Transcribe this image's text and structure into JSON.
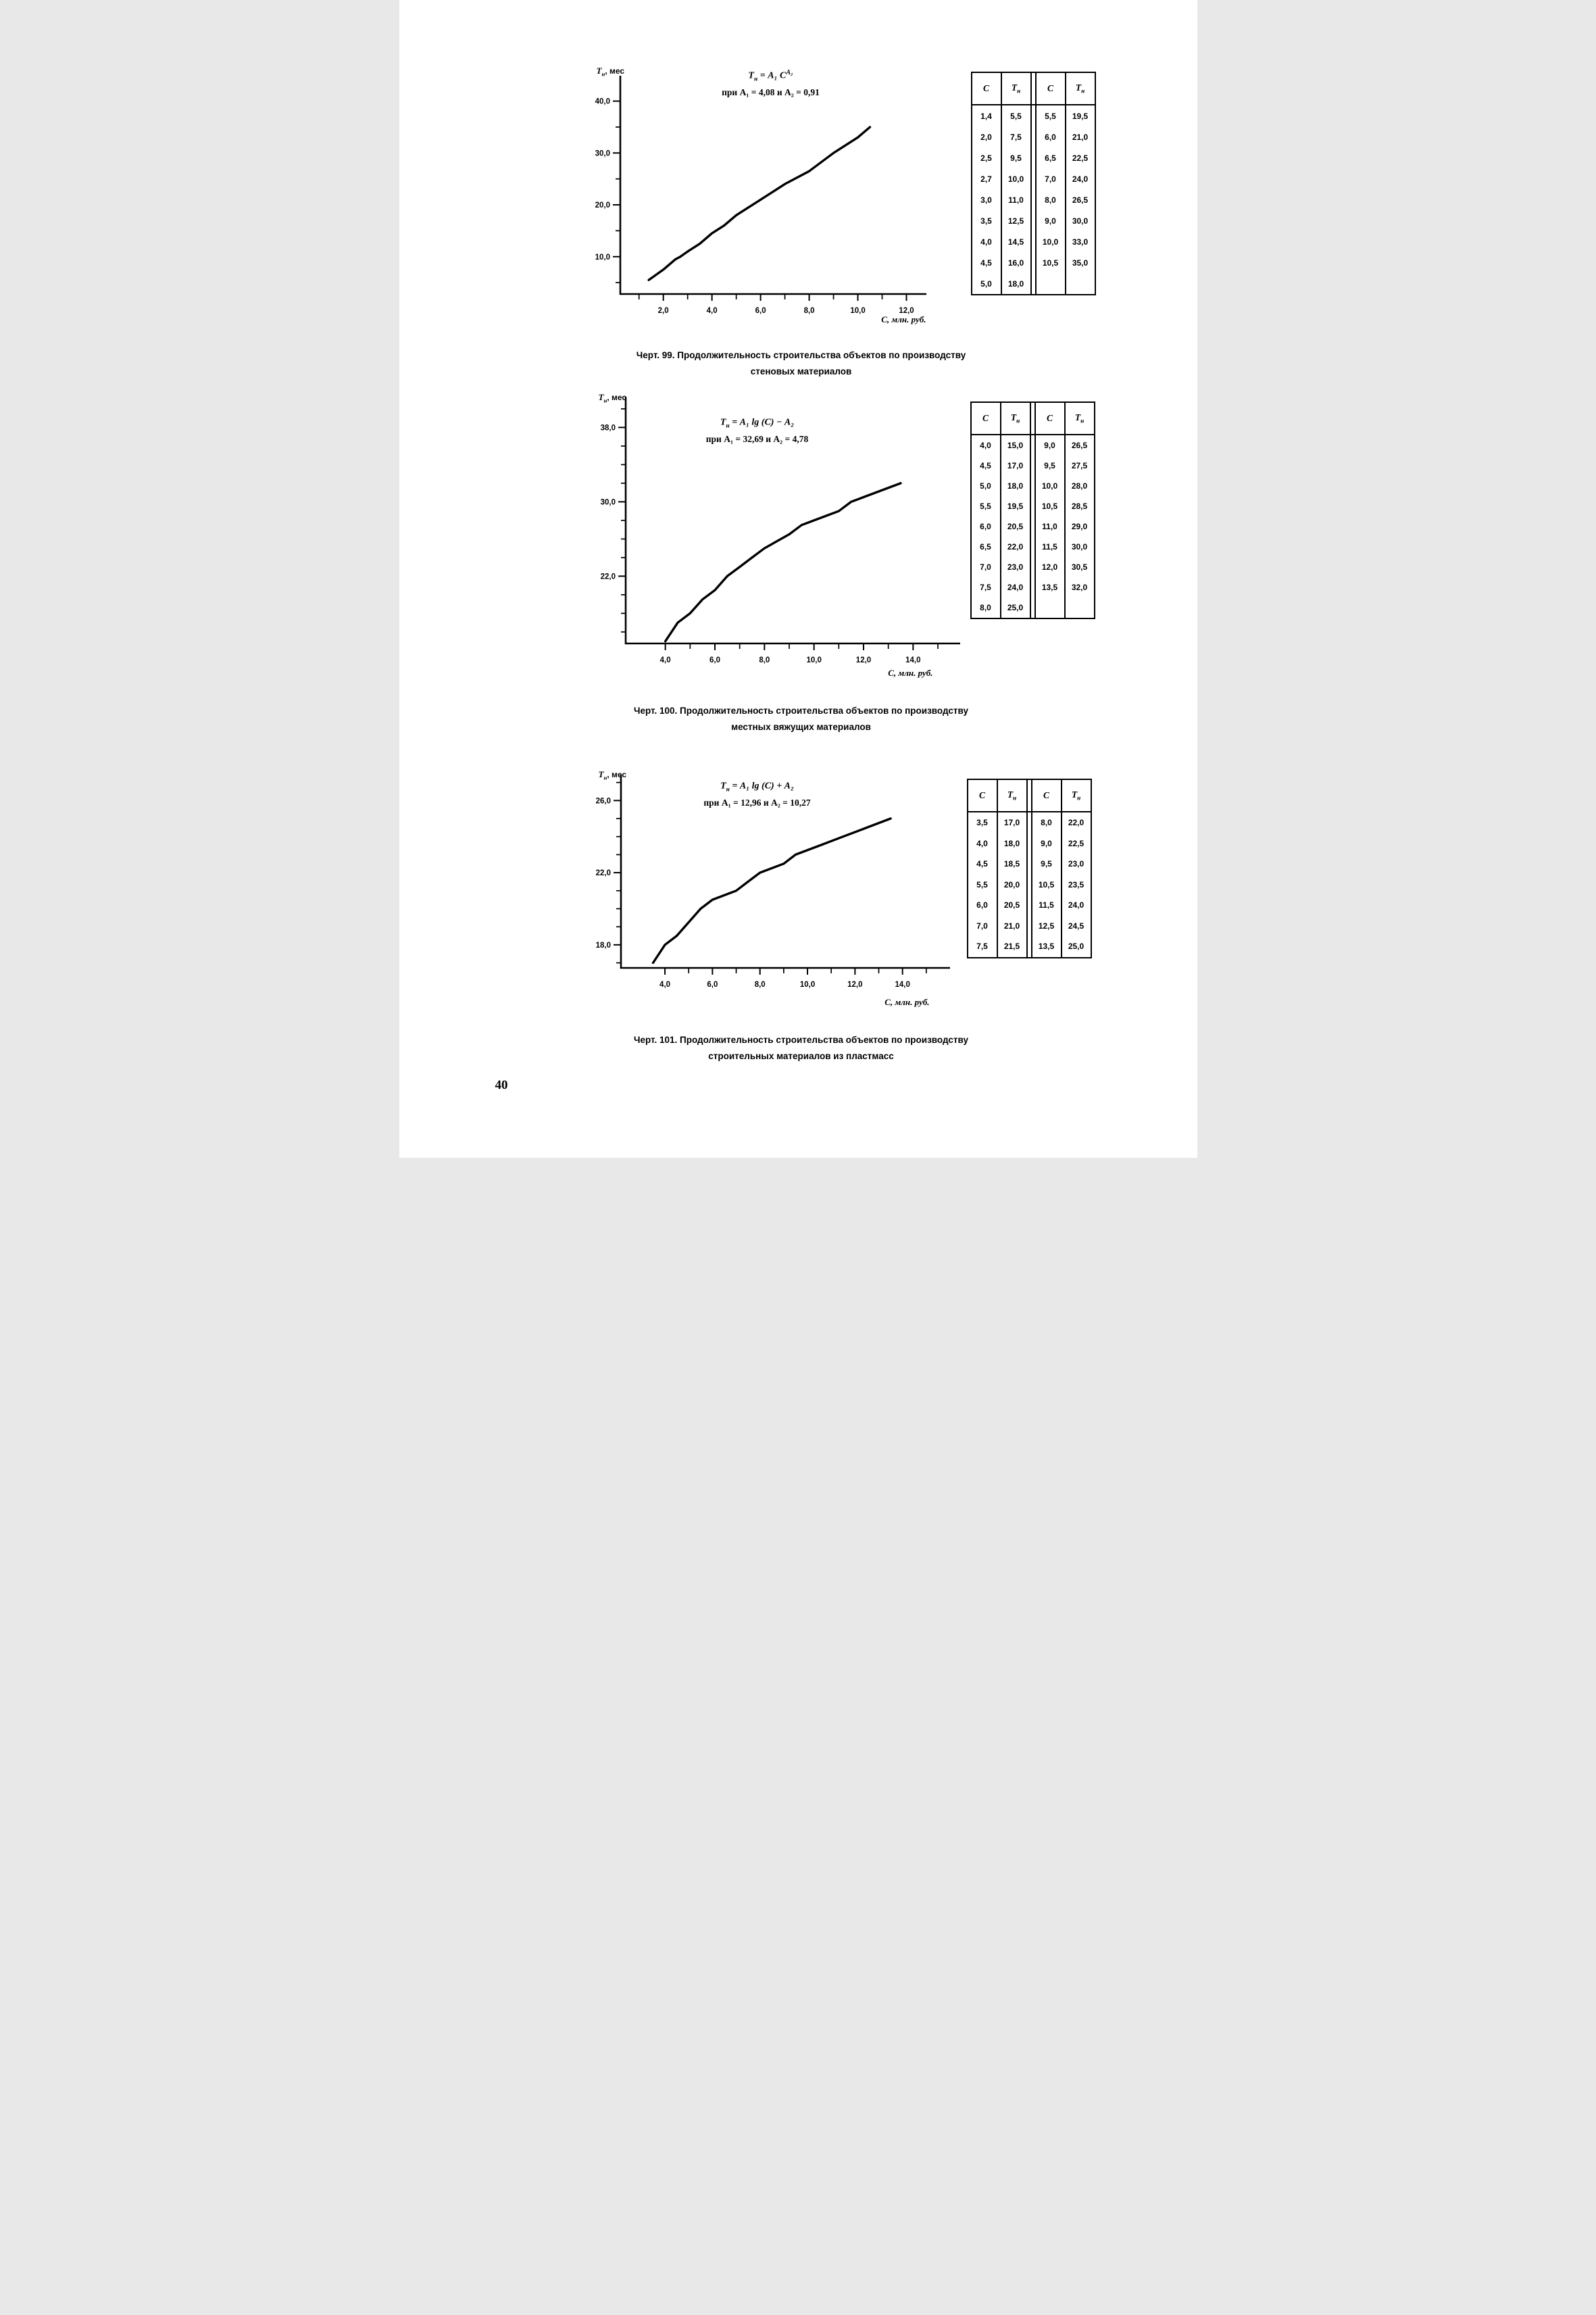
{
  "page": {
    "number": "40"
  },
  "figures": [
    {
      "y_label": {
        "base": "Т",
        "sub": "н",
        "rest": ", мес"
      },
      "x_unit": "С, млн. руб.",
      "formula": {
        "lhs": "Т",
        "lhs_sub": "н",
        "mid": " = А₁ С",
        "sup": "А₂",
        "line2": "при А₁ = 4,08 и А₂ = 0,91"
      },
      "caption1": "Черт. 99. Продолжительность строительства объектов по производству",
      "caption2": "стеновых материалов",
      "table": {
        "headers": [
          {
            "base": "С",
            "sub": ""
          },
          {
            "base": "Т",
            "sub": "н"
          },
          {
            "base": "С",
            "sub": ""
          },
          {
            "base": "Т",
            "sub": "н"
          }
        ],
        "rows": [
          [
            "1,4",
            "5,5",
            "5,5",
            "19,5"
          ],
          [
            "2,0",
            "7,5",
            "6,0",
            "21,0"
          ],
          [
            "2,5",
            "9,5",
            "6,5",
            "22,5"
          ],
          [
            "2,7",
            "10,0",
            "7,0",
            "24,0"
          ],
          [
            "3,0",
            "11,0",
            "8,0",
            "26,5"
          ],
          [
            "3,5",
            "12,5",
            "9,0",
            "30,0"
          ],
          [
            "4,0",
            "14,5",
            "10,0",
            "33,0"
          ],
          [
            "4,5",
            "16,0",
            "10,5",
            "35,0"
          ],
          [
            "5,0",
            "18,0",
            "",
            ""
          ]
        ]
      }
    },
    {
      "y_label": {
        "base": "Т",
        "sub": "н",
        "rest": ", мес"
      },
      "x_unit": "С, млн. руб.",
      "formula": {
        "lhs": "Т",
        "lhs_sub": "н",
        "mid": " = А₁ lg (С) − А₂",
        "sup": "",
        "line2": "при А₁ = 32,69 и А₂ = 4,78"
      },
      "caption1": "Черт. 100. Продолжительность строительства объектов по производству",
      "caption2": "местных вяжущих материалов",
      "table": {
        "headers": [
          {
            "base": "С",
            "sub": ""
          },
          {
            "base": "Т",
            "sub": "н"
          },
          {
            "base": "С",
            "sub": ""
          },
          {
            "base": "Т",
            "sub": "н"
          }
        ],
        "rows": [
          [
            "4,0",
            "15,0",
            "9,0",
            "26,5"
          ],
          [
            "4,5",
            "17,0",
            "9,5",
            "27,5"
          ],
          [
            "5,0",
            "18,0",
            "10,0",
            "28,0"
          ],
          [
            "5,5",
            "19,5",
            "10,5",
            "28,5"
          ],
          [
            "6,0",
            "20,5",
            "11,0",
            "29,0"
          ],
          [
            "6,5",
            "22,0",
            "11,5",
            "30,0"
          ],
          [
            "7,0",
            "23,0",
            "12,0",
            "30,5"
          ],
          [
            "7,5",
            "24,0",
            "13,5",
            "32,0"
          ],
          [
            "8,0",
            "25,0",
            "",
            ""
          ]
        ]
      }
    },
    {
      "y_label": {
        "base": "Т",
        "sub": "н",
        "rest": ", мес"
      },
      "x_unit": "С, млн. руб.",
      "formula": {
        "lhs": "Т",
        "lhs_sub": "н",
        "mid": " = А₁ lg (С) + А₂",
        "sup": "",
        "line2": "при А₁ = 12,96 и А₂ = 10,27"
      },
      "caption1": "Черт. 101. Продолжительность строительства объектов по производству",
      "caption2": "строительных материалов из пластмасс",
      "table": {
        "headers": [
          {
            "base": "С",
            "sub": ""
          },
          {
            "base": "Т",
            "sub": "н"
          },
          {
            "base": "С",
            "sub": ""
          },
          {
            "base": "Т",
            "sub": "н"
          }
        ],
        "rows": [
          [
            "3,5",
            "17,0",
            "8,0",
            "22,0"
          ],
          [
            "4,0",
            "18,0",
            "9,0",
            "22,5"
          ],
          [
            "4,5",
            "18,5",
            "9,5",
            "23,0"
          ],
          [
            "5,5",
            "20,0",
            "10,5",
            "23,5"
          ],
          [
            "6,0",
            "20,5",
            "11,5",
            "24,0"
          ],
          [
            "7,0",
            "21,0",
            "12,5",
            "24,5"
          ],
          [
            "7,5",
            "21,5",
            "13,5",
            "25,0"
          ]
        ]
      }
    }
  ],
  "chart_data": [
    {
      "type": "line",
      "title": "Черт. 99. Продолжительность строительства объектов по производству стеновых материалов",
      "equation": "Тн = А₁·С^А₂ при А₁ = 4,08 и А₂ = 0,91",
      "xlabel": "С, млн. руб.",
      "ylabel": "Тн, мес",
      "xlim": [
        0.23,
        12.82
      ],
      "ylim": [
        2.8,
        44.9
      ],
      "x_ticks": [
        {
          "v": 2,
          "label": "2,0"
        },
        {
          "v": 4,
          "label": "4,0"
        },
        {
          "v": 6,
          "label": "6,0"
        },
        {
          "v": 8,
          "label": "8,0"
        },
        {
          "v": 10,
          "label": "10,0"
        },
        {
          "v": 12,
          "label": "12,0"
        }
      ],
      "x_minor": [
        1,
        3,
        5,
        7,
        9,
        11
      ],
      "y_ticks": [
        {
          "v": 10,
          "label": "10,0"
        },
        {
          "v": 20,
          "label": "20,0"
        },
        {
          "v": 30,
          "label": "30,0"
        },
        {
          "v": 40,
          "label": "40,0"
        }
      ],
      "y_minor": [
        5,
        15,
        25,
        35
      ],
      "grid": false,
      "points": [
        [
          1.4,
          5.5
        ],
        [
          2,
          7.5
        ],
        [
          2.5,
          9.5
        ],
        [
          2.7,
          10
        ],
        [
          3,
          11
        ],
        [
          3.5,
          12.5
        ],
        [
          4,
          14.5
        ],
        [
          4.5,
          16
        ],
        [
          5,
          18
        ],
        [
          5.5,
          19.5
        ],
        [
          6,
          21
        ],
        [
          6.5,
          22.5
        ],
        [
          7,
          24
        ],
        [
          8,
          26.5
        ],
        [
          9,
          30
        ],
        [
          10,
          33
        ],
        [
          10.5,
          35
        ]
      ]
    },
    {
      "type": "line",
      "title": "Черт. 100. Продолжительность строительства объектов по производству местных вяжущих материалов",
      "equation": "Тн = А₁·lg(С) − А₂ при А₁ = 32,69 и А₂ = 4,78",
      "xlabel": "С, млн. руб.",
      "ylabel": "Тн, мес",
      "xlim": [
        2.4,
        15.9
      ],
      "ylim": [
        14.76,
        41.3
      ],
      "x_ticks": [
        {
          "v": 4,
          "label": "4,0"
        },
        {
          "v": 6,
          "label": "6,0"
        },
        {
          "v": 8,
          "label": "8,0"
        },
        {
          "v": 10,
          "label": "10,0"
        },
        {
          "v": 12,
          "label": "12,0"
        },
        {
          "v": 14,
          "label": "14,0"
        }
      ],
      "x_minor": [
        5,
        7,
        9,
        11,
        13,
        15
      ],
      "y_ticks": [
        {
          "v": 22,
          "label": "22,0"
        },
        {
          "v": 30,
          "label": "30,0"
        },
        {
          "v": 38,
          "label": "38,0"
        }
      ],
      "y_minor": [
        16,
        18,
        20,
        24,
        26,
        28,
        32,
        34,
        36,
        40
      ],
      "grid": false,
      "points": [
        [
          4,
          15
        ],
        [
          4.5,
          17
        ],
        [
          5,
          18
        ],
        [
          5.5,
          19.5
        ],
        [
          6,
          20.5
        ],
        [
          6.5,
          22
        ],
        [
          7,
          23
        ],
        [
          7.5,
          24
        ],
        [
          8,
          25
        ],
        [
          9,
          26.5
        ],
        [
          9.5,
          27.5
        ],
        [
          10,
          28
        ],
        [
          10.5,
          28.5
        ],
        [
          11,
          29
        ],
        [
          11.5,
          30
        ],
        [
          12,
          30.5
        ],
        [
          13.5,
          32
        ]
      ]
    },
    {
      "type": "line",
      "title": "Черт. 101. Продолжительность строительства объектов по производству строительных материалов из пластмасс",
      "equation": "Тн = А₁·lg(С) + А₂ при А₁ = 12,96 и А₂ = 10,27",
      "xlabel": "С, млн. руб.",
      "ylabel": "Тн, мес",
      "xlim": [
        2.15,
        16.0
      ],
      "ylim": [
        16.72,
        27.4
      ],
      "x_ticks": [
        {
          "v": 4,
          "label": "4,0"
        },
        {
          "v": 6,
          "label": "6,0"
        },
        {
          "v": 8,
          "label": "8,0"
        },
        {
          "v": 10,
          "label": "10,0"
        },
        {
          "v": 12,
          "label": "12,0"
        },
        {
          "v": 14,
          "label": "14,0"
        }
      ],
      "x_minor": [
        5,
        7,
        9,
        11,
        13,
        15
      ],
      "y_ticks": [
        {
          "v": 18,
          "label": "18,0"
        },
        {
          "v": 22,
          "label": "22,0"
        },
        {
          "v": 26,
          "label": "26,0"
        }
      ],
      "y_minor": [
        17,
        19,
        20,
        21,
        23,
        24,
        25,
        27
      ],
      "grid": false,
      "points": [
        [
          3.5,
          17
        ],
        [
          4,
          18
        ],
        [
          4.5,
          18.5
        ],
        [
          5.5,
          20
        ],
        [
          6,
          20.5
        ],
        [
          7,
          21
        ],
        [
          7.5,
          21.5
        ],
        [
          8,
          22
        ],
        [
          9,
          22.5
        ],
        [
          9.5,
          23
        ],
        [
          10.5,
          23.5
        ],
        [
          11.5,
          24
        ],
        [
          12.5,
          24.5
        ],
        [
          13.5,
          25
        ]
      ]
    }
  ]
}
